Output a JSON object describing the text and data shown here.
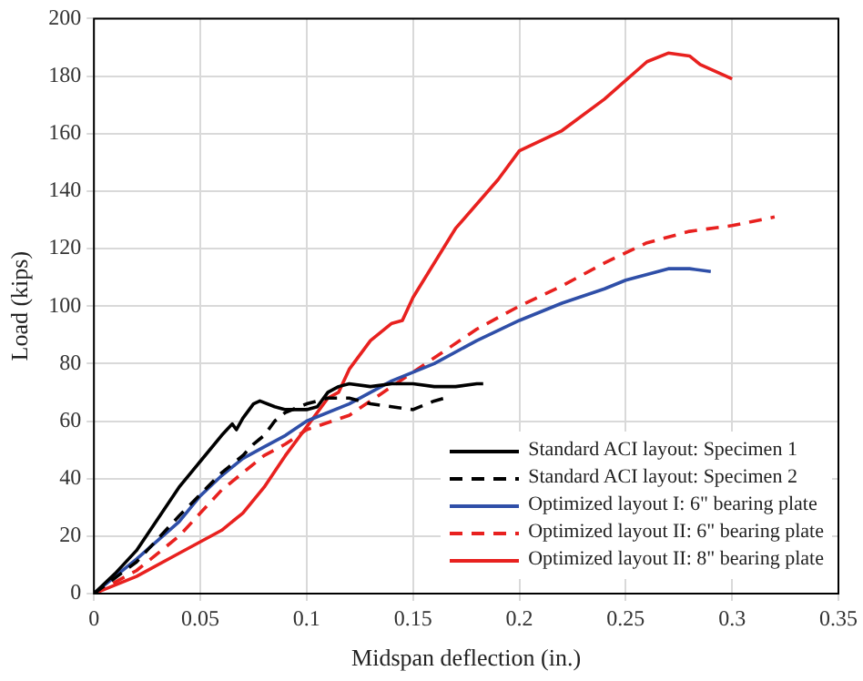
{
  "chart_data": {
    "type": "line",
    "xlabel": "Midspan deflection (in.)",
    "ylabel": "Load (kips)",
    "xlim": [
      0,
      0.35
    ],
    "xticks": [
      0,
      0.05,
      0.1,
      0.15,
      0.2,
      0.25,
      0.3,
      0.35
    ],
    "ylim": [
      0,
      200
    ],
    "yticks": [
      0,
      20,
      40,
      60,
      80,
      100,
      120,
      140,
      160,
      180,
      200
    ],
    "grid": true,
    "legend": "bottom right",
    "marker": "none",
    "series": [
      {
        "name": "Standard ACI layout: Specimen 1",
        "color": "#000000",
        "line_style": "solid",
        "x": [
          0,
          0.01,
          0.02,
          0.03,
          0.04,
          0.05,
          0.06,
          0.065,
          0.067,
          0.07,
          0.075,
          0.078,
          0.085,
          0.09,
          0.1,
          0.105,
          0.11,
          0.115,
          0.12,
          0.13,
          0.14,
          0.15,
          0.16,
          0.17,
          0.18,
          0.183
        ],
        "values": [
          0,
          7,
          15,
          26,
          37,
          46,
          55,
          59,
          57,
          61,
          66,
          67,
          65,
          64,
          64,
          65,
          70,
          72,
          73,
          72,
          73,
          73,
          72,
          72,
          73,
          73
        ]
      },
      {
        "name": "Standard ACI layout: Specimen 2",
        "color": "#000000",
        "line_style": "dashed",
        "x": [
          0,
          0.02,
          0.04,
          0.06,
          0.07,
          0.075,
          0.08,
          0.085,
          0.09,
          0.1,
          0.11,
          0.12,
          0.13,
          0.14,
          0.15,
          0.16,
          0.165
        ],
        "values": [
          0,
          11,
          27,
          42,
          48,
          52,
          55,
          60,
          63,
          66,
          68,
          68,
          66,
          65,
          64,
          67,
          68
        ]
      },
      {
        "name": "Optimized layout I: 6\" bearing plate",
        "color": "#2f4fa8",
        "line_style": "solid",
        "x": [
          0,
          0.02,
          0.04,
          0.05,
          0.06,
          0.07,
          0.08,
          0.09,
          0.1,
          0.12,
          0.14,
          0.16,
          0.18,
          0.2,
          0.22,
          0.24,
          0.25,
          0.26,
          0.27,
          0.28,
          0.29
        ],
        "values": [
          0,
          12,
          25,
          34,
          41,
          47,
          51,
          55,
          60,
          66,
          74,
          80,
          88,
          95,
          101,
          106,
          109,
          111,
          113,
          113,
          112
        ]
      },
      {
        "name": "Optimized layout II: 6\" bearing plate",
        "color": "#e8211f",
        "line_style": "dashed",
        "x": [
          0,
          0.02,
          0.04,
          0.05,
          0.06,
          0.07,
          0.08,
          0.09,
          0.1,
          0.12,
          0.14,
          0.15,
          0.16,
          0.18,
          0.2,
          0.22,
          0.24,
          0.26,
          0.28,
          0.3,
          0.32
        ],
        "values": [
          0,
          8,
          20,
          28,
          36,
          42,
          48,
          52,
          57,
          62,
          72,
          77,
          82,
          92,
          100,
          107,
          115,
          122,
          126,
          128,
          131
        ]
      },
      {
        "name": "Optimized layout II: 8\" bearing plate",
        "color": "#e8211f",
        "line_style": "solid",
        "x": [
          0,
          0.02,
          0.04,
          0.06,
          0.07,
          0.08,
          0.09,
          0.1,
          0.11,
          0.115,
          0.12,
          0.13,
          0.14,
          0.145,
          0.15,
          0.17,
          0.19,
          0.2,
          0.22,
          0.24,
          0.26,
          0.27,
          0.28,
          0.285,
          0.3
        ],
        "values": [
          0,
          6,
          14,
          22,
          28,
          37,
          48,
          58,
          68,
          70,
          78,
          88,
          94,
          95,
          103,
          127,
          144,
          154,
          161,
          172,
          185,
          188,
          187,
          184,
          179
        ]
      }
    ]
  }
}
